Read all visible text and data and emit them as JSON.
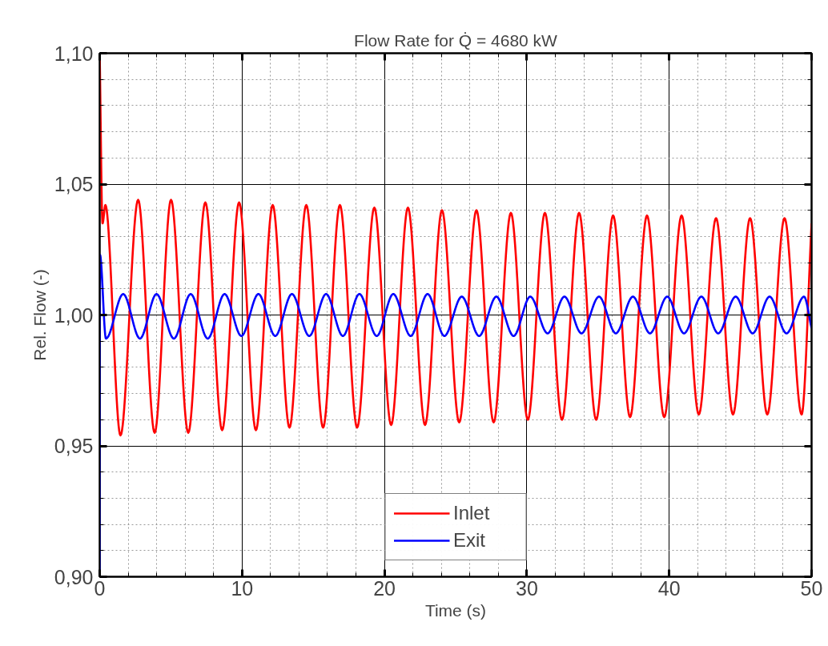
{
  "chart_data": {
    "type": "line",
    "title": "Flow Rate for Q̇ = 4680 kW",
    "xlabel": "Time (s)",
    "ylabel": "Rel. Flow (-)",
    "xlim": [
      0,
      50
    ],
    "ylim": [
      0.9,
      1.1
    ],
    "xticks": [
      0,
      10,
      20,
      30,
      40,
      50
    ],
    "yticks": [
      {
        "value": 0.9,
        "label": "0,90"
      },
      {
        "value": 0.95,
        "label": "0,95"
      },
      {
        "value": 1.0,
        "label": "1,00"
      },
      {
        "value": 1.05,
        "label": "1,05"
      },
      {
        "value": 1.1,
        "label": "1,10"
      }
    ],
    "grid": true,
    "legend": "bottom",
    "series": [
      {
        "name": "Inlet",
        "color": "#ff0000",
        "x": [
          0,
          0.2,
          0.4,
          1.46,
          2.7,
          3.86,
          5.01,
          6.22,
          7.42,
          8.6,
          9.79,
          10.97,
          12.15,
          13.33,
          14.51,
          15.69,
          16.87,
          18.08,
          19.29,
          20.47,
          21.65,
          22.85,
          24.04,
          25.25,
          26.46,
          27.67,
          28.88,
          30.07,
          31.27,
          32.47,
          33.67,
          34.87,
          36.06,
          37.25,
          38.44,
          39.65,
          40.87,
          42.08,
          43.29,
          44.48,
          45.68,
          46.89,
          48.1,
          49.3,
          50
        ],
        "values": [
          1.1,
          1.035,
          1.042,
          0.954,
          1.044,
          0.955,
          1.044,
          0.955,
          1.043,
          0.956,
          1.043,
          0.956,
          1.042,
          0.957,
          1.042,
          0.957,
          1.042,
          0.957,
          1.041,
          0.958,
          1.041,
          0.958,
          1.04,
          0.959,
          1.04,
          0.959,
          1.039,
          0.96,
          1.039,
          0.96,
          1.039,
          0.96,
          1.038,
          0.961,
          1.038,
          0.961,
          1.038,
          0.962,
          1.037,
          0.962,
          1.037,
          0.962,
          1.037,
          0.962,
          1.035
        ]
      },
      {
        "name": "Exit",
        "color": "#0000ff",
        "x": [
          0,
          0.02,
          0.44,
          1.65,
          2.83,
          3.99,
          5.21,
          6.39,
          7.59,
          8.77,
          9.95,
          11.15,
          12.33,
          13.5,
          14.72,
          15.9,
          17.08,
          18.24,
          19.46,
          20.62,
          21.84,
          23.03,
          24.21,
          25.43,
          26.65,
          27.86,
          29.07,
          30.24,
          31.46,
          32.64,
          33.84,
          35.07,
          36.25,
          37.45,
          38.65,
          39.86,
          41.04,
          42.26,
          43.44,
          44.67,
          45.86,
          47.05,
          48.24,
          49.47,
          50
        ],
        "values": [
          0.9,
          1.023,
          0.991,
          1.008,
          0.991,
          1.008,
          0.991,
          1.008,
          0.991,
          1.008,
          0.992,
          1.008,
          0.992,
          1.008,
          0.992,
          1.008,
          0.992,
          1.008,
          0.992,
          1.008,
          0.992,
          1.008,
          0.992,
          1.007,
          0.992,
          1.007,
          0.992,
          1.007,
          0.993,
          1.007,
          0.993,
          1.007,
          0.993,
          1.007,
          0.993,
          1.007,
          0.993,
          1.007,
          0.993,
          1.007,
          0.993,
          1.007,
          0.993,
          1.007,
          0.995
        ]
      }
    ]
  }
}
